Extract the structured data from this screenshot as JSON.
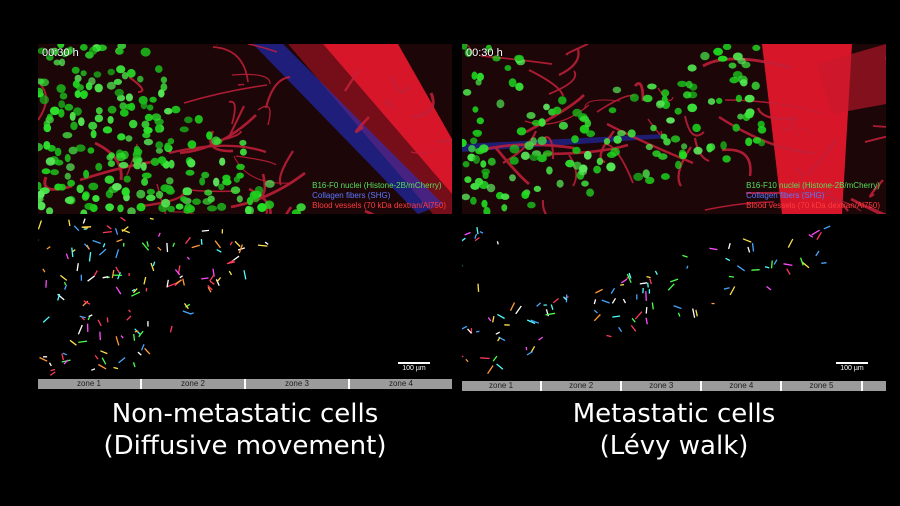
{
  "left": {
    "timestamp": "00:30 h",
    "legend": {
      "nuclei": "B16-F0 nuclei (Histone-2B/mCherry)",
      "collagen": "Collagen fibers (SHG)",
      "vessels": "Blood vessels (70 kDa dextran/Al750)"
    },
    "scale": "100 µm",
    "zones": [
      "zone 1",
      "zone 2",
      "zone 3",
      "zone 4"
    ],
    "caption_line1": "Non-metastatic cells",
    "caption_line2": "(Diffusive movement)"
  },
  "right": {
    "timestamp": "00:30 h",
    "legend": {
      "nuclei": "B16-F10 nuclei (Histone-2B/mCherry)",
      "collagen": "Collagen fibers (SHG)",
      "vessels": "Blood vessels (70 kDa dextran/Al750)"
    },
    "scale": "100 µm",
    "zones": [
      "zone 1",
      "zone 2",
      "zone 3",
      "zone 4",
      "zone 5",
      ""
    ],
    "caption_line1": "Metastatic cells",
    "caption_line2": "(Lévy walk)"
  },
  "colors": {
    "nuclei": "#3fd13f",
    "vessels": "#e01e2e",
    "collagen": "#2b3cff",
    "background": "#000000"
  }
}
